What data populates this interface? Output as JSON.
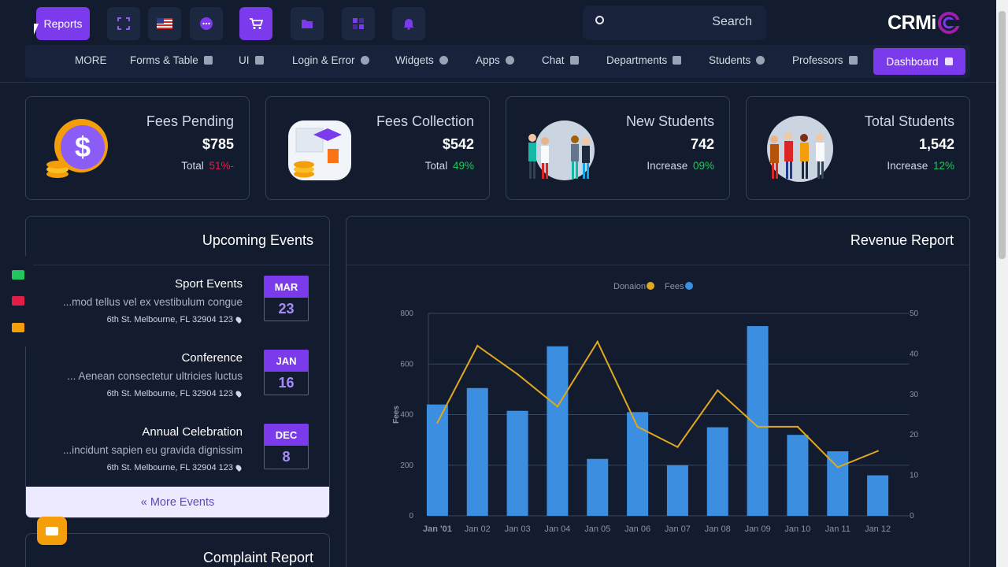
{
  "topbar": {
    "reports_label": "Reports",
    "icons": [
      "expand-icon",
      "flag-us-icon",
      "chat-bubble-icon",
      "cart-icon",
      "folder-icon",
      "grid-icon",
      "bell-icon"
    ],
    "search_placeholder": "Search",
    "logo_text": "CRMi"
  },
  "menu": {
    "items": [
      {
        "label": "MORE",
        "icon": ""
      },
      {
        "label": "Forms & Table",
        "icon": "cube-icon"
      },
      {
        "label": "UI",
        "icon": "books-icon"
      },
      {
        "label": "Login & Error",
        "icon": "target-icon"
      },
      {
        "label": "Widgets",
        "icon": "leaf-icon"
      },
      {
        "label": "Apps",
        "icon": "bulb-icon"
      },
      {
        "label": "Chat",
        "icon": "message-icon"
      },
      {
        "label": "Departments",
        "icon": "tag-icon"
      },
      {
        "label": "Students",
        "icon": "user-icon"
      },
      {
        "label": "Professors",
        "icon": "id-card-icon"
      }
    ],
    "active_label": "Dashboard"
  },
  "stats": [
    {
      "title": "Fees Pending",
      "value": "$785",
      "sub_label": "Total",
      "sub_value": "51%-",
      "tone": "red"
    },
    {
      "title": "Fees Collection",
      "value": "$542",
      "sub_label": "Total",
      "sub_value": "49%",
      "tone": "green"
    },
    {
      "title": "New Students",
      "value": "742",
      "sub_label": "Increase",
      "sub_value": "09%",
      "tone": "green"
    },
    {
      "title": "Total Students",
      "value": "1,542",
      "sub_label": "Increase",
      "sub_value": "12%",
      "tone": "green"
    }
  ],
  "events": {
    "title": "Upcoming Events",
    "items": [
      {
        "name": "Sport Events",
        "desc": "...mod tellus vel ex vestibulum congue",
        "address": "6th St. Melbourne, FL 32904 123",
        "month": "MAR",
        "day": "23"
      },
      {
        "name": "Conference",
        "desc": "... Aenean consectetur ultricies luctus",
        "address": "6th St. Melbourne, FL 32904 123",
        "month": "JAN",
        "day": "16"
      },
      {
        "name": "Annual Celebration",
        "desc": "...incidunt sapien eu gravida dignissim",
        "address": "6th St. Melbourne, FL 32904 123",
        "month": "DEC",
        "day": "8"
      }
    ],
    "more_label": "« More Events"
  },
  "complaint": {
    "title": "Complaint Report"
  },
  "revenue": {
    "title": "Revenue Report"
  },
  "colors": {
    "accent": "#7c3aed",
    "bar": "#3b8ee0",
    "line": "#e0a81f",
    "bg": "#131c2e"
  },
  "chart_data": {
    "type": "bar",
    "categories": [
      "Jan '01",
      "Jan 02",
      "Jan 03",
      "Jan 04",
      "Jan 05",
      "Jan 06",
      "Jan 07",
      "Jan 08",
      "Jan 09",
      "Jan 10",
      "Jan 11",
      "Jan 12"
    ],
    "series": [
      {
        "name": "Fees",
        "type": "bar",
        "axis": "left",
        "color": "#3b8ee0",
        "values": [
          440,
          505,
          415,
          670,
          225,
          410,
          200,
          350,
          750,
          320,
          255,
          160
        ]
      },
      {
        "name": "Donaion",
        "type": "line",
        "axis": "right",
        "color": "#e0a81f",
        "values": [
          23,
          42,
          35,
          27,
          43,
          22,
          17,
          31,
          22,
          22,
          12,
          16
        ]
      }
    ],
    "ylabel": "Fees",
    "ylim": [
      0,
      800
    ],
    "yticks": [
      0,
      200,
      400,
      600,
      800
    ],
    "y2lim": [
      0,
      50
    ],
    "y2ticks": [
      0,
      10,
      20,
      30,
      40,
      50
    ],
    "legend": "top-center",
    "grid": true
  }
}
